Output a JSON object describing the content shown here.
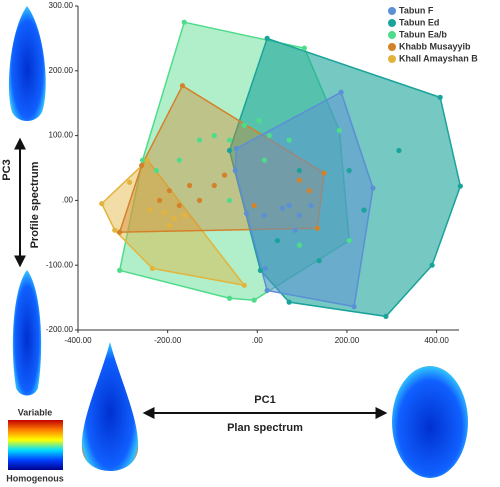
{
  "chart_data": {
    "type": "scatter",
    "xlim": [
      -400,
      450
    ],
    "ylim": [
      -200,
      300
    ],
    "xticks": [
      {
        "value": -400,
        "label": "-400.00"
      },
      {
        "value": -200,
        "label": "-200.00"
      },
      {
        "value": 0,
        "label": ".00"
      },
      {
        "value": 200,
        "label": "200.00"
      },
      {
        "value": 400,
        "label": "400.00"
      }
    ],
    "yticks": [
      {
        "value": -200,
        "label": "-200.00"
      },
      {
        "value": -100,
        "label": "-100.00"
      },
      {
        "value": 0,
        "label": ".00"
      },
      {
        "value": 100,
        "label": "100.00"
      },
      {
        "value": 200,
        "label": "200.00"
      },
      {
        "value": 300,
        "label": "300.00"
      }
    ],
    "series": [
      {
        "name": "Tabun F",
        "color": "#5b8fd6",
        "x": [
          187,
          258,
          216,
          -49,
          16,
          71,
          56,
          94,
          120,
          85,
          18,
          -24,
          22,
          -47
        ],
        "values": [
          167,
          19,
          -164,
          46,
          -23,
          -8,
          -12,
          -23,
          -8,
          -46,
          -105,
          -20,
          -139,
          80
        ]
      },
      {
        "name": "Tabun Ed",
        "color": "#1aa39a",
        "x": [
          22,
          408,
          453,
          390,
          287,
          71,
          7,
          316,
          238,
          205,
          94,
          138,
          45,
          -62
        ],
        "values": [
          250,
          159,
          22,
          -100,
          -179,
          -157,
          -108,
          77,
          -15,
          46,
          46,
          -93,
          -62,
          77
        ]
      },
      {
        "name": "Tabun Ea/b",
        "color": "#4fdc8a",
        "x": [
          -163,
          105,
          -307,
          -7,
          -62,
          -256,
          -174,
          -129,
          -62,
          16,
          4,
          71,
          183,
          205,
          94,
          -62,
          -29,
          -96,
          27,
          -225
        ],
        "values": [
          275,
          235,
          -108,
          -154,
          -151,
          62,
          62,
          93,
          93,
          62,
          123,
          93,
          108,
          -62,
          -69,
          0,
          116,
          100,
          100,
          46
        ]
      },
      {
        "name": "Khabb Musayyib",
        "color": "#d4822a",
        "x": [
          -167,
          149,
          134,
          -307,
          -258,
          -196,
          -151,
          -129,
          -96,
          -73,
          -174,
          -218,
          -7,
          94,
          116
        ],
        "values": [
          177,
          42,
          -43,
          -49,
          54,
          15,
          23,
          0,
          23,
          39,
          -8,
          0,
          -8,
          31,
          15
        ]
      },
      {
        "name": "Khall Amayshan B",
        "color": "#e3b43b",
        "x": [
          -347,
          -245,
          -285,
          -29,
          -234,
          -318,
          -240,
          -207,
          -185,
          -163,
          -196
        ],
        "values": [
          -5,
          62,
          28,
          -131,
          -105,
          -46,
          -15,
          -19,
          -28,
          -23,
          -39
        ]
      }
    ],
    "hull_order": [
      2,
      1,
      4,
      3,
      0
    ],
    "fill_opacity": [
      0.45,
      0.6,
      0.45,
      0.4,
      0.5
    ],
    "legend": "upper right",
    "side_label": "PC3",
    "side_text": "Profile spectrum",
    "bottom_label": "PC1",
    "bottom_text": "Plan spectrum",
    "scale_high": "Variable",
    "scale_low": "Homogenous"
  }
}
